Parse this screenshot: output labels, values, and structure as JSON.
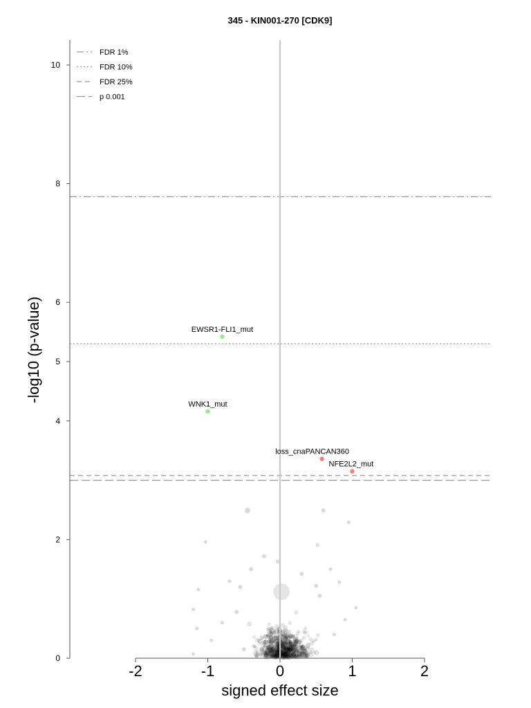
{
  "chart_data": {
    "type": "scatter",
    "title": "345 - KIN001-270 [CDK9]",
    "xlabel": "signed effect size",
    "ylabel": "-log10 (p-value)",
    "xlim": [
      -2.9,
      2.9
    ],
    "ylim": [
      0,
      10.4
    ],
    "xticks": [
      "-2",
      "-1",
      "0",
      "1",
      "2"
    ],
    "xtick_values": [
      -2,
      -1,
      0,
      1,
      2
    ],
    "yticks": [
      "0",
      "2",
      "4",
      "5",
      "6",
      "8",
      "10"
    ],
    "ytick_values": [
      0,
      2,
      4,
      5,
      6,
      8,
      10
    ],
    "legend_position": "top-left",
    "legend": [
      {
        "label": "FDR 1%",
        "style": "dashdot",
        "color": "#888888"
      },
      {
        "label": "FDR 10%",
        "style": "dotted",
        "color": "#888888"
      },
      {
        "label": "FDR 25%",
        "style": "dashed",
        "color": "#888888"
      },
      {
        "label": "p 0.001",
        "style": "longdash",
        "color": "#888888"
      }
    ],
    "thresholds": [
      {
        "label": "FDR 1%",
        "y": 7.78,
        "style": "dashdot"
      },
      {
        "label": "FDR 10%",
        "y": 5.3,
        "style": "dotted"
      },
      {
        "label": "FDR 25%",
        "y": 3.08,
        "style": "dashed"
      },
      {
        "label": "p 0.001",
        "y": 3.0,
        "style": "longdash"
      }
    ],
    "zero_line_x": 0,
    "highlighted_points": [
      {
        "label": "EWSR1-FLI1_mut",
        "x": -0.8,
        "y": 5.42,
        "color": "#90ee90"
      },
      {
        "label": "WNK1_mut",
        "x": -1.0,
        "y": 4.16,
        "color": "#90ee90"
      },
      {
        "label": "loss_cnaPANCAN360",
        "x": 0.58,
        "y": 3.36,
        "color": "#f08080"
      },
      {
        "label": "NFE2L2_mut",
        "x": 1.0,
        "y": 3.15,
        "color": "#f08080"
      }
    ],
    "background_points": [
      {
        "x": -0.45,
        "y": 2.49,
        "r": 4
      },
      {
        "x": 0.6,
        "y": 2.49,
        "r": 3
      },
      {
        "x": 0.95,
        "y": 2.29,
        "r": 2.5
      },
      {
        "x": -1.03,
        "y": 1.96,
        "r": 2.5
      },
      {
        "x": 0.02,
        "y": 1.12,
        "r": 12
      },
      {
        "x": 0.82,
        "y": 1.28,
        "r": 2.5
      },
      {
        "x": -1.13,
        "y": 1.16,
        "r": 2.5
      },
      {
        "x": -1.2,
        "y": 0.82,
        "r": 2.5
      },
      {
        "x": -1.15,
        "y": 0.5,
        "r": 2.5
      },
      {
        "x": -1.2,
        "y": 0.07,
        "r": 2.5
      },
      {
        "x": 0.52,
        "y": 1.91,
        "r": 2.5
      },
      {
        "x": -0.55,
        "y": 1.2,
        "r": 3
      },
      {
        "x": -0.4,
        "y": 1.5,
        "r": 3
      },
      {
        "x": -0.22,
        "y": 1.72,
        "r": 3
      },
      {
        "x": -0.03,
        "y": 1.63,
        "r": 3
      },
      {
        "x": 0.3,
        "y": 1.42,
        "r": 3
      },
      {
        "x": 0.5,
        "y": 1.22,
        "r": 3
      },
      {
        "x": 0.7,
        "y": 1.5,
        "r": 2.5
      },
      {
        "x": 0.55,
        "y": 1.05,
        "r": 3
      },
      {
        "x": -0.7,
        "y": 1.3,
        "r": 2.5
      },
      {
        "x": -0.8,
        "y": 0.6,
        "r": 2.5
      },
      {
        "x": -0.6,
        "y": 0.78,
        "r": 3
      },
      {
        "x": 0.75,
        "y": 0.4,
        "r": 2.5
      },
      {
        "x": 0.9,
        "y": 0.65,
        "r": 2.5
      },
      {
        "x": -0.95,
        "y": 0.3,
        "r": 2.5
      },
      {
        "x": 1.05,
        "y": 0.85,
        "r": 2.5
      },
      {
        "x": -0.5,
        "y": 0.15,
        "r": 3
      }
    ]
  }
}
